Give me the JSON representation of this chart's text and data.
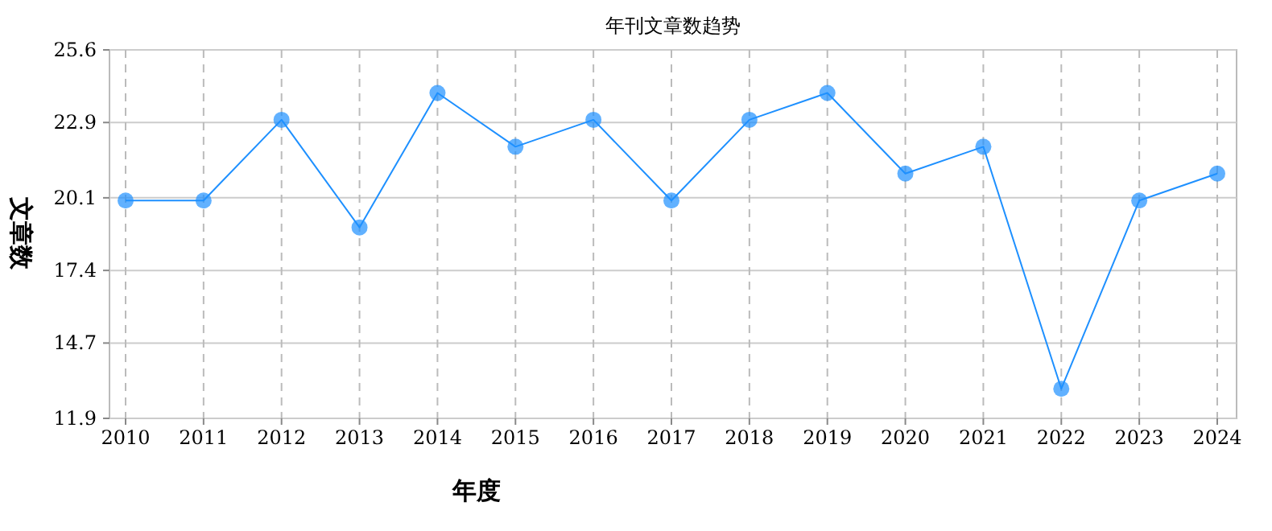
{
  "chart_data": {
    "type": "line",
    "title": "年刊文章数趋势",
    "xlabel": "年度",
    "ylabel": "文章数",
    "categories": [
      "2010",
      "2011",
      "2012",
      "2013",
      "2014",
      "2015",
      "2016",
      "2017",
      "2018",
      "2019",
      "2020",
      "2021",
      "2022",
      "2023",
      "2024"
    ],
    "series": [
      {
        "color": "#1e90ff",
        "values": [
          20,
          20,
          23,
          19,
          24,
          22,
          23,
          20,
          23,
          24,
          21,
          22,
          13,
          20,
          21
        ]
      }
    ],
    "ylim": [
      11.9,
      25.6
    ],
    "yticks": [
      11.9,
      14.7,
      17.4,
      20.1,
      22.9,
      25.6
    ],
    "grid": true,
    "marker": "circle"
  }
}
